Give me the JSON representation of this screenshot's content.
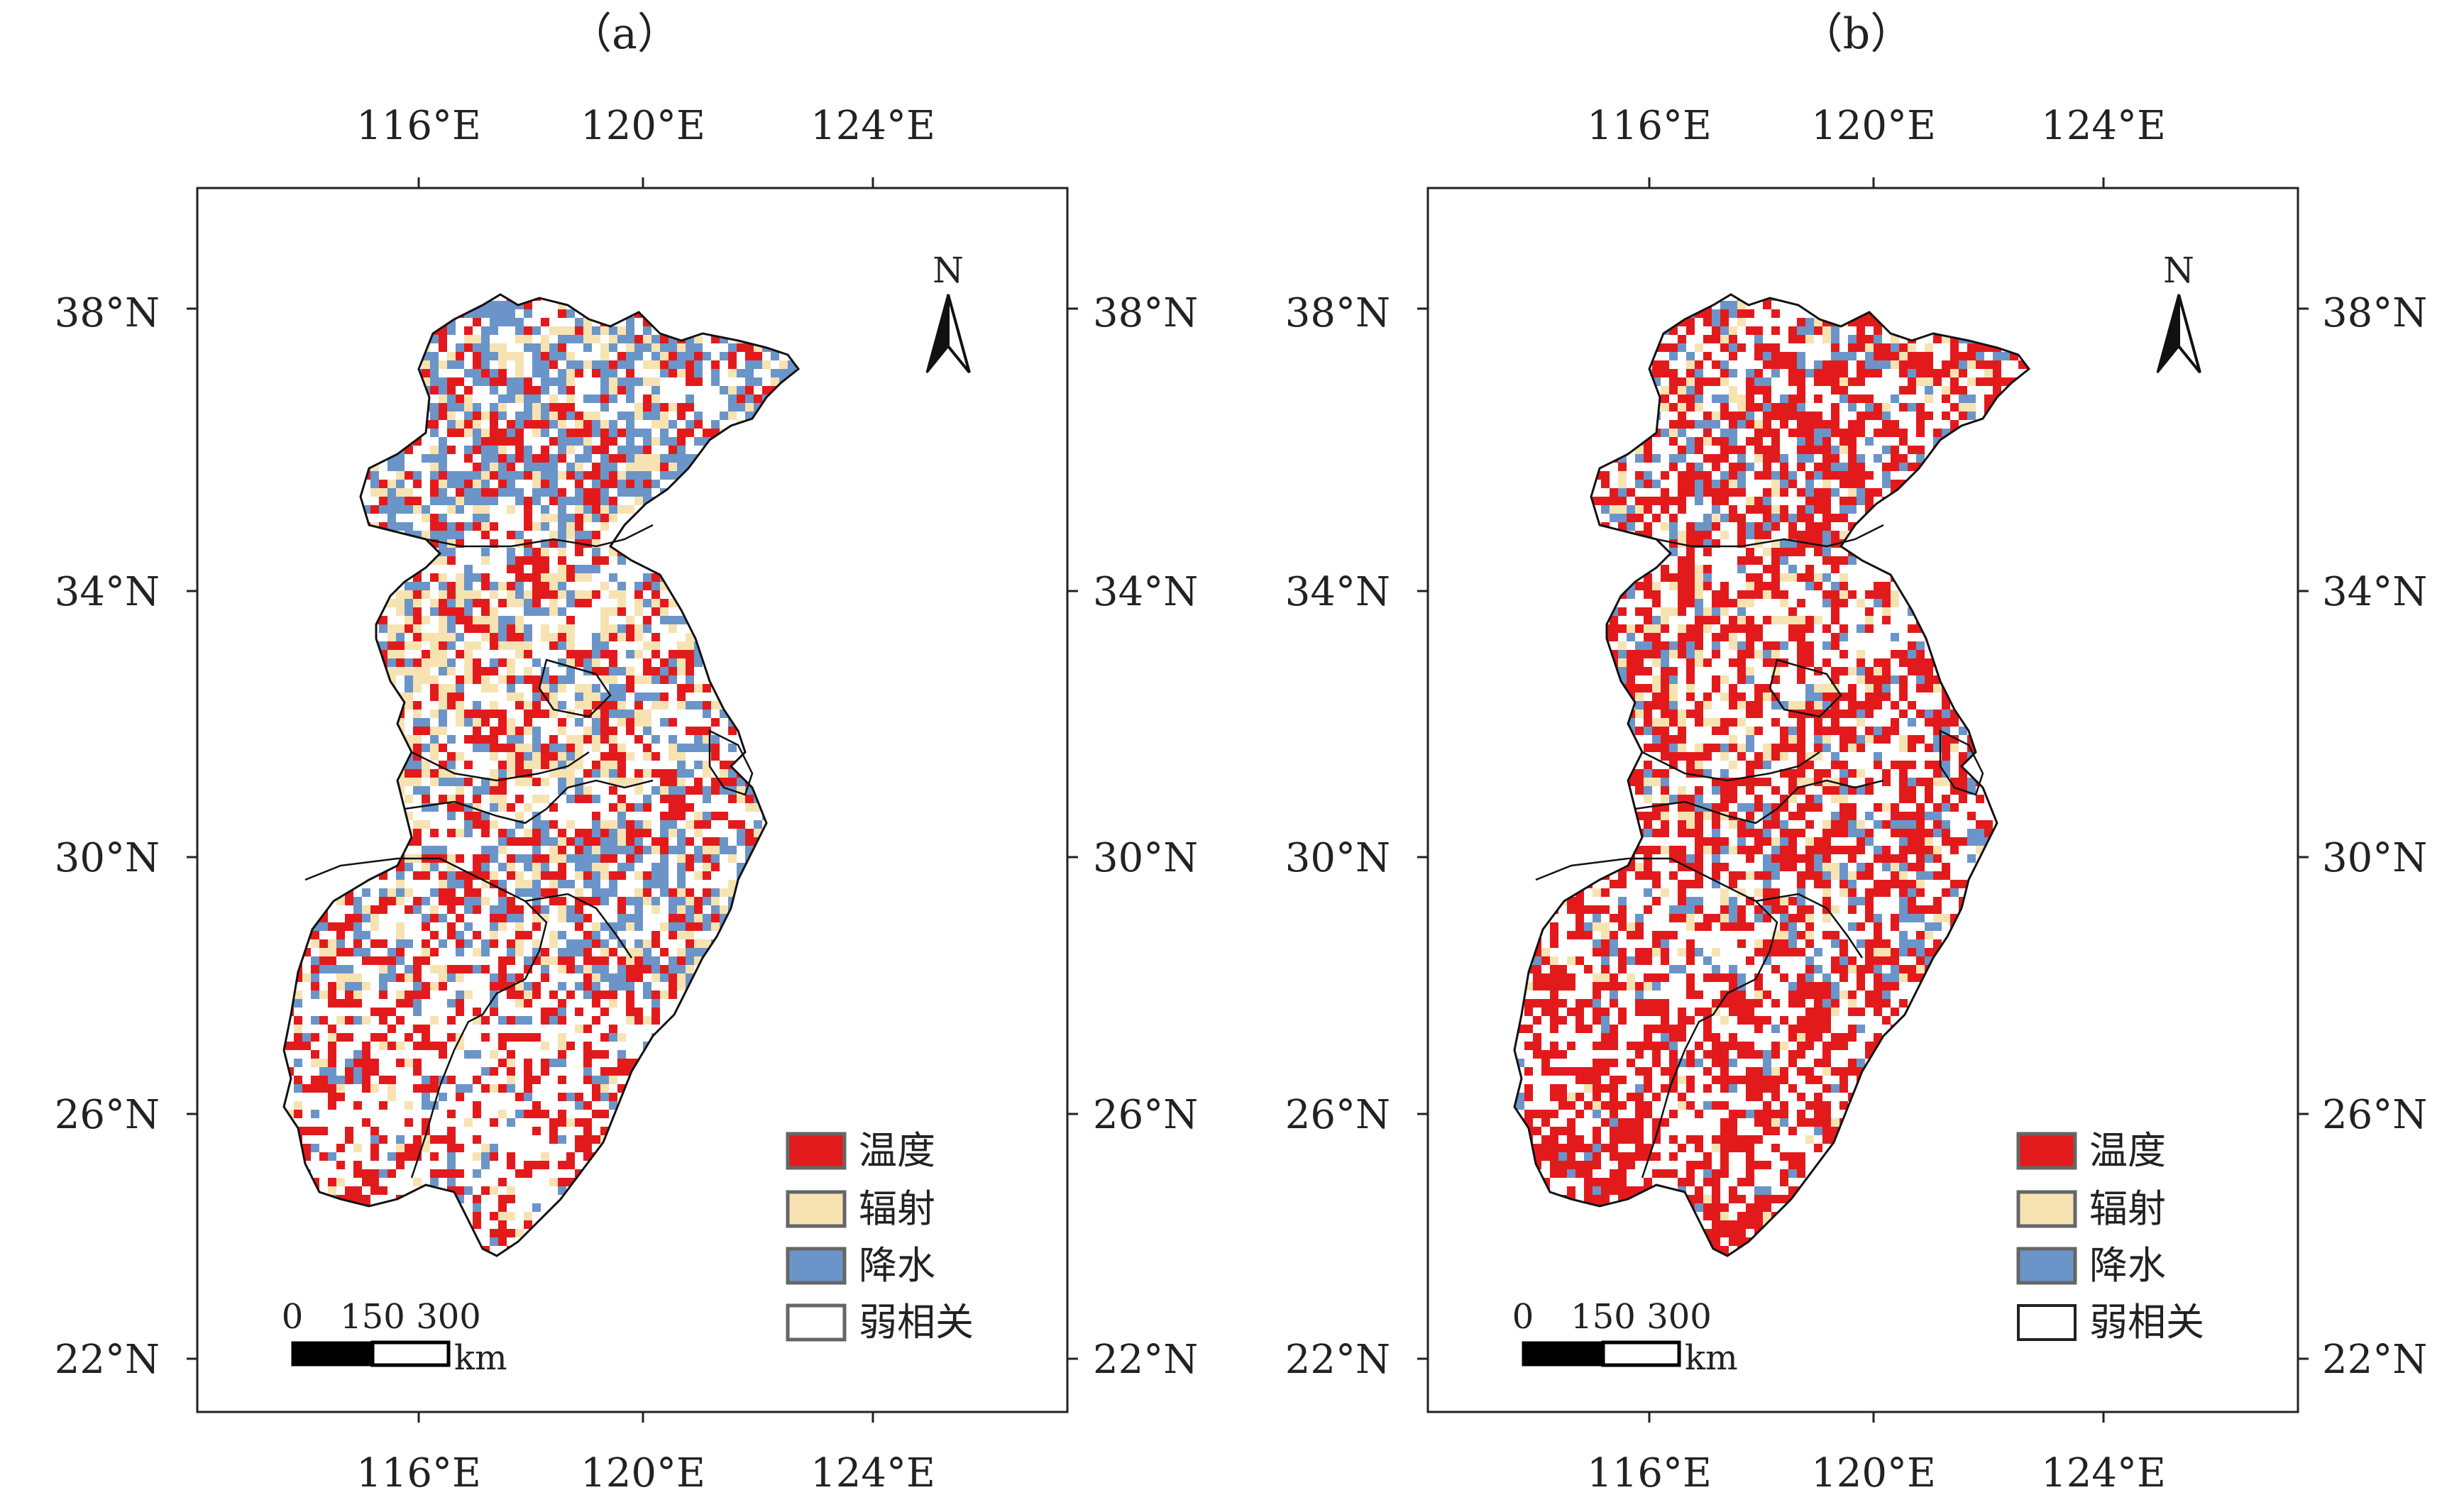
{
  "colors": {
    "temperature": "#e31a1c",
    "radiation": "#f7e3b2",
    "precipitation": "#6b95c8",
    "weak": "#ffffff",
    "frame": "#222222",
    "boundary": "#111111"
  },
  "longitude_labels": [
    "116°E",
    "120°E",
    "124°E"
  ],
  "latitude_labels": [
    "38°N",
    "34°N",
    "30°N",
    "26°N",
    "22°N"
  ],
  "north_label": "N",
  "scale": {
    "ticks": [
      "0",
      "150",
      "300"
    ],
    "unit": "km"
  },
  "legend": [
    {
      "label": "温度",
      "key": "temperature"
    },
    {
      "label": "辐射",
      "key": "radiation"
    },
    {
      "label": "降水",
      "key": "precipitation"
    },
    {
      "label": "弱相关",
      "key": "weak"
    }
  ],
  "panels": [
    {
      "id": "a",
      "title": "（a）",
      "weights": {
        "temperature": 0.22,
        "radiation": 0.14,
        "precipitation": 0.18
      }
    },
    {
      "id": "b",
      "title": "（b）",
      "weights": {
        "temperature": 0.4,
        "radiation": 0.06,
        "precipitation": 0.09
      }
    }
  ]
}
